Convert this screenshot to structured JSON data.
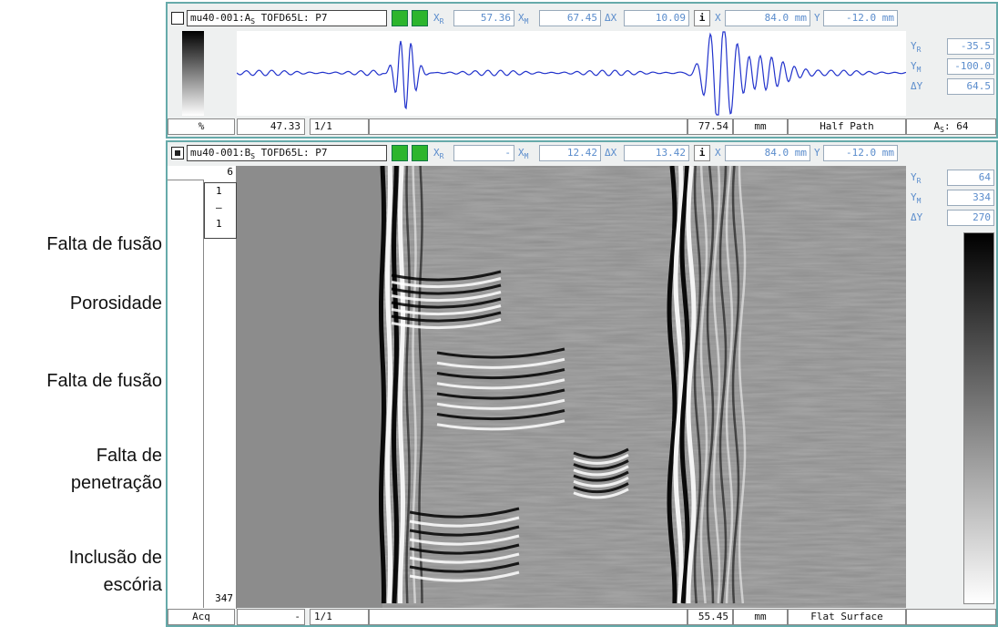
{
  "annotations": [
    "Falta de fusão",
    "Porosidade",
    "Falta de fusão",
    "Falta de\npenetração",
    "Inclusão de\nescória"
  ],
  "labels": {
    "x": "X",
    "y": "Y",
    "r": "R",
    "m": "M",
    "dx": "ΔX",
    "dy": "ΔY",
    "info": "i"
  },
  "ascan": {
    "title": "mu40-001:A",
    "title_sub": "S",
    "title_rest": " TOFD65L: P7",
    "xr": "57.36",
    "xm": "67.45",
    "dx": "10.09",
    "x": "84.0 mm",
    "y": "-12.0 mm",
    "yr": "-35.5",
    "ym": "-100.0",
    "dy": "64.5",
    "footer": [
      "%",
      "47.33",
      "1/1",
      "77.54",
      "mm",
      "Half Path"
    ],
    "gate_label": "A",
    "gate_sub": "S",
    "gate_value": ": 64"
  },
  "bscan": {
    "title": "mu40-001:B",
    "title_sub": "S",
    "title_rest": " TOFD65L: P7",
    "xr": "-",
    "xm": "12.42",
    "dx": "13.42",
    "x": "84.0 mm",
    "y": "-12.0 mm",
    "yr": "64",
    "ym": "334",
    "dy": "270",
    "scale_top": "6",
    "scan_index": [
      "1",
      "–",
      "1"
    ],
    "scale_bottom": "347",
    "footer": [
      "Acq",
      "-",
      "1/1",
      "55.45",
      "mm",
      "Flat Surface"
    ]
  }
}
